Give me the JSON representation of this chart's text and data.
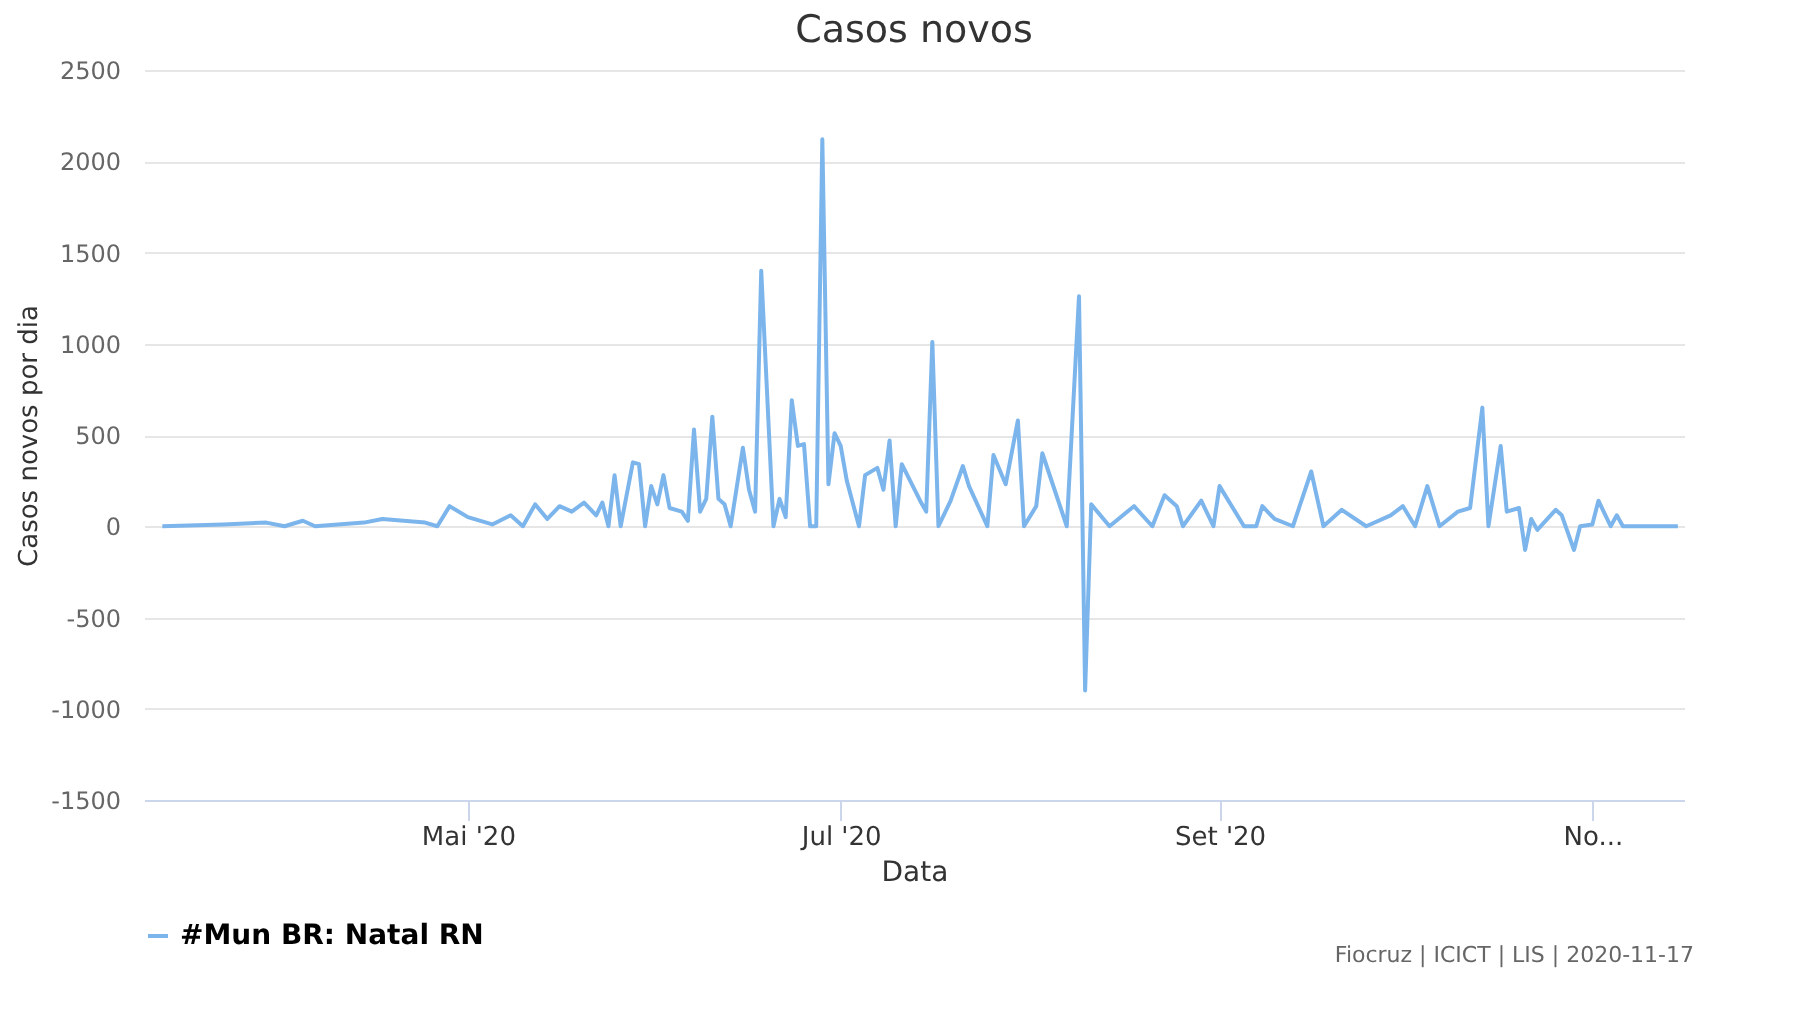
{
  "chart_data": {
    "type": "line",
    "title": "Casos novos",
    "xlabel": "Data",
    "ylabel": "Casos novos por dia",
    "x": [
      "2020-03-12",
      "2020-03-22",
      "2020-03-29",
      "2020-04-01",
      "2020-04-04",
      "2020-04-06",
      "2020-04-14",
      "2020-04-17",
      "2020-04-24",
      "2020-04-26",
      "2020-04-28",
      "2020-05-01",
      "2020-05-05",
      "2020-05-08",
      "2020-05-10",
      "2020-05-12",
      "2020-05-14",
      "2020-05-16",
      "2020-05-18",
      "2020-05-20",
      "2020-05-22",
      "2020-05-23",
      "2020-05-24",
      "2020-05-25",
      "2020-05-26",
      "2020-05-28",
      "2020-05-29",
      "2020-05-30",
      "2020-05-31",
      "2020-06-01",
      "2020-06-02",
      "2020-06-03",
      "2020-06-05",
      "2020-06-06",
      "2020-06-07",
      "2020-06-08",
      "2020-06-09",
      "2020-06-10",
      "2020-06-11",
      "2020-06-12",
      "2020-06-13",
      "2020-06-15",
      "2020-06-16",
      "2020-06-17",
      "2020-06-18",
      "2020-06-20",
      "2020-06-21",
      "2020-06-22",
      "2020-06-23",
      "2020-06-24",
      "2020-06-25",
      "2020-06-26",
      "2020-06-27",
      "2020-06-28",
      "2020-06-29",
      "2020-06-30",
      "2020-07-01",
      "2020-07-02",
      "2020-07-04",
      "2020-07-05",
      "2020-07-07",
      "2020-07-08",
      "2020-07-09",
      "2020-07-10",
      "2020-07-11",
      "2020-07-14",
      "2020-07-15",
      "2020-07-16",
      "2020-07-17",
      "2020-07-19",
      "2020-07-21",
      "2020-07-22",
      "2020-07-25",
      "2020-07-26",
      "2020-07-28",
      "2020-07-30",
      "2020-07-31",
      "2020-08-02",
      "2020-08-03",
      "2020-08-05",
      "2020-08-07",
      "2020-08-09",
      "2020-08-10",
      "2020-08-11",
      "2020-08-14",
      "2020-08-18",
      "2020-08-21",
      "2020-08-23",
      "2020-08-25",
      "2020-08-26",
      "2020-08-29",
      "2020-08-31",
      "2020-09-01",
      "2020-09-05",
      "2020-09-07",
      "2020-09-08",
      "2020-09-10",
      "2020-09-13",
      "2020-09-16",
      "2020-09-18",
      "2020-09-21",
      "2020-09-25",
      "2020-09-29",
      "2020-10-01",
      "2020-10-03",
      "2020-10-05",
      "2020-10-07",
      "2020-10-10",
      "2020-10-12",
      "2020-10-14",
      "2020-10-15",
      "2020-10-17",
      "2020-10-18",
      "2020-10-20",
      "2020-10-21",
      "2020-10-22",
      "2020-10-23",
      "2020-10-26",
      "2020-10-27",
      "2020-10-29",
      "2020-10-30",
      "2020-11-01",
      "2020-11-02",
      "2020-11-04",
      "2020-11-05",
      "2020-11-06",
      "2020-11-15"
    ],
    "series": [
      {
        "name": "#Mun BR: Natal RN",
        "color": "#7cb5ec",
        "values": [
          0,
          10,
          20,
          0,
          30,
          0,
          20,
          40,
          20,
          0,
          110,
          50,
          10,
          60,
          0,
          120,
          40,
          110,
          80,
          130,
          60,
          130,
          0,
          280,
          0,
          350,
          340,
          0,
          220,
          120,
          280,
          100,
          80,
          30,
          530,
          80,
          150,
          600,
          150,
          120,
          0,
          430,
          200,
          80,
          1400,
          0,
          150,
          50,
          690,
          440,
          450,
          0,
          0,
          2120,
          230,
          510,
          440,
          250,
          0,
          280,
          320,
          200,
          470,
          0,
          340,
          140,
          80,
          1010,
          0,
          140,
          330,
          220,
          0,
          390,
          230,
          580,
          0,
          110,
          400,
          200,
          0,
          1260,
          -900,
          120,
          0,
          110,
          0,
          170,
          110,
          0,
          140,
          0,
          220,
          0,
          0,
          110,
          40,
          0,
          300,
          0,
          90,
          0,
          60,
          110,
          0,
          220,
          0,
          80,
          100,
          650,
          0,
          440,
          80,
          100,
          -130,
          40,
          -20,
          90,
          60,
          -130,
          0,
          10,
          140,
          0,
          60,
          0,
          0
        ]
      }
    ],
    "xlim": [
      "2020-03-09",
      "2020-11-16"
    ],
    "xticks": [
      {
        "value": "2020-05-01",
        "label": "Mai '20"
      },
      {
        "value": "2020-07-01",
        "label": "Jul '20"
      },
      {
        "value": "2020-09-01",
        "label": "Set '20"
      },
      {
        "value": "2020-11-01",
        "label": "No..."
      }
    ],
    "ylim": [
      -1500,
      2500
    ],
    "yticks": [
      -1500,
      -1000,
      -500,
      0,
      500,
      1000,
      1500,
      2000,
      2500
    ],
    "grid": "y",
    "legend": "bottom",
    "marker": "none",
    "line_style": "solid",
    "annotations": [
      "Fiocruz | ICICT | LIS | 2020-11-17"
    ]
  }
}
